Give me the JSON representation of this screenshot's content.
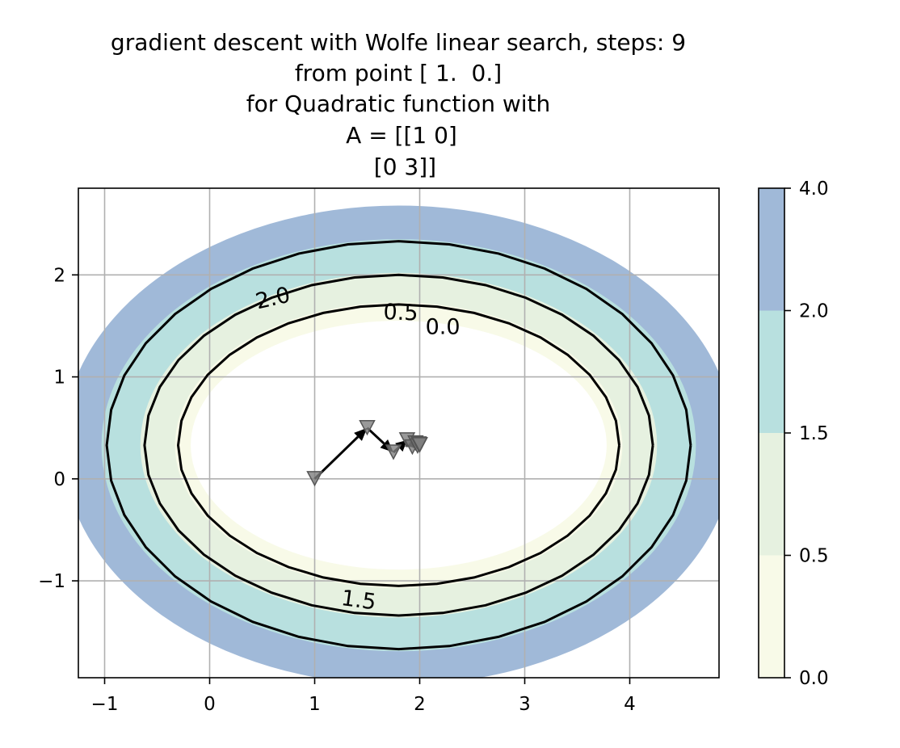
{
  "chart_data": {
    "type": "contour",
    "title_lines": [
      "gradient descent with Wolfe linear search, steps: 9",
      "from point [ 1.  0.]",
      "for Quadratic function with",
      "A = [[1 0]",
      " [0 3]]"
    ],
    "xlim": [
      -1.25,
      4.85
    ],
    "ylim": [
      -1.95,
      2.85
    ],
    "x_ticks": [
      -1,
      0,
      1,
      2,
      3,
      4
    ],
    "x_tick_labels": [
      "−1",
      "0",
      "1",
      "2",
      "3",
      "4"
    ],
    "y_ticks": [
      -1,
      0,
      1,
      2
    ],
    "y_tick_labels": [
      "−1",
      "0",
      "1",
      "2"
    ],
    "grid": true,
    "ellipse_center": [
      1.8,
      0.33
    ],
    "filled_levels": [
      0.0,
      0.5,
      1.5,
      2.0,
      4.0
    ],
    "level_colors": [
      "#f8fae8",
      "#e6f1e0",
      "#b8e0df",
      "#a0b9d8"
    ],
    "contour_lines": [
      {
        "level": 0.5,
        "x_semi_axis": 2.1,
        "y_semi_axis": 1.38
      },
      {
        "level": 1.5,
        "x_semi_axis": 2.42,
        "y_semi_axis": 1.67
      },
      {
        "level": 2.0,
        "x_semi_axis": 2.78,
        "y_semi_axis": 2.0
      }
    ],
    "contour_labels": [
      {
        "text": "2.0",
        "x": 0.6,
        "y": 1.78,
        "rotation": -13
      },
      {
        "text": "0.5",
        "x": 1.82,
        "y": 1.64,
        "rotation": 2
      },
      {
        "text": "0.0",
        "x": 2.22,
        "y": 1.5,
        "rotation": 0
      },
      {
        "text": "1.5",
        "x": 1.42,
        "y": -1.18,
        "rotation": 8
      }
    ],
    "path": {
      "x": [
        1.0,
        1.5,
        1.75,
        1.88,
        1.93,
        1.96,
        1.98,
        1.99,
        2.0,
        2.0
      ],
      "y": [
        0.0,
        0.5,
        0.26,
        0.38,
        0.31,
        0.35,
        0.32,
        0.34,
        0.33,
        0.333
      ]
    },
    "colorbar": {
      "ticks": [
        0.0,
        0.5,
        1.5,
        2.0,
        4.0
      ],
      "tick_labels": [
        "0.0",
        "0.5",
        "1.5",
        "2.0",
        "4.0"
      ]
    }
  }
}
